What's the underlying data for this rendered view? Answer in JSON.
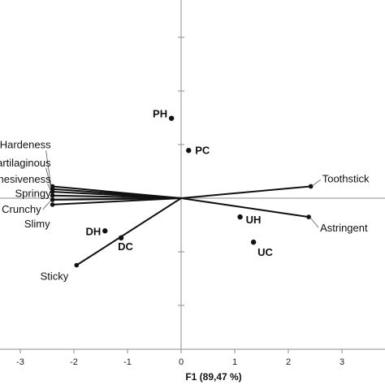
{
  "chart_data": {
    "type": "scatter",
    "subtype": "biplot",
    "xlabel": "F1 (89,47 %)",
    "ylabel": "",
    "x_ticks": [
      -3,
      -2,
      -1,
      0,
      1,
      2,
      3
    ],
    "xlim": [
      -3.3,
      3.65
    ],
    "ylim": [
      -3.1,
      3.7
    ],
    "grid": false,
    "observations": [
      {
        "label": "PH",
        "x": -0.18,
        "y": 1.49
      },
      {
        "label": "PC",
        "x": 0.14,
        "y": 0.89
      },
      {
        "label": "DH",
        "x": -1.42,
        "y": -0.61
      },
      {
        "label": "DC",
        "x": -1.12,
        "y": -0.74
      },
      {
        "label": "UH",
        "x": 1.1,
        "y": -0.35
      },
      {
        "label": "UC",
        "x": 1.35,
        "y": -0.82
      }
    ],
    "variables": [
      {
        "label": "Hardeness",
        "x": -2.4,
        "y": 0.22
      },
      {
        "label": "Cartilaginous",
        "x": -2.4,
        "y": 0.17
      },
      {
        "label": "Adhesiveness",
        "x": -2.4,
        "y": 0.12
      },
      {
        "label": "Springy",
        "x": -2.4,
        "y": 0.05
      },
      {
        "label": "Crunchy",
        "x": -2.4,
        "y": -0.03
      },
      {
        "label": "Slimy",
        "x": -2.4,
        "y": -0.12
      },
      {
        "label": "Sticky",
        "x": -1.95,
        "y": -1.25
      },
      {
        "label": "Toothstick",
        "x": 2.42,
        "y": 0.22
      },
      {
        "label": "Astringent",
        "x": 2.38,
        "y": -0.35
      }
    ]
  }
}
